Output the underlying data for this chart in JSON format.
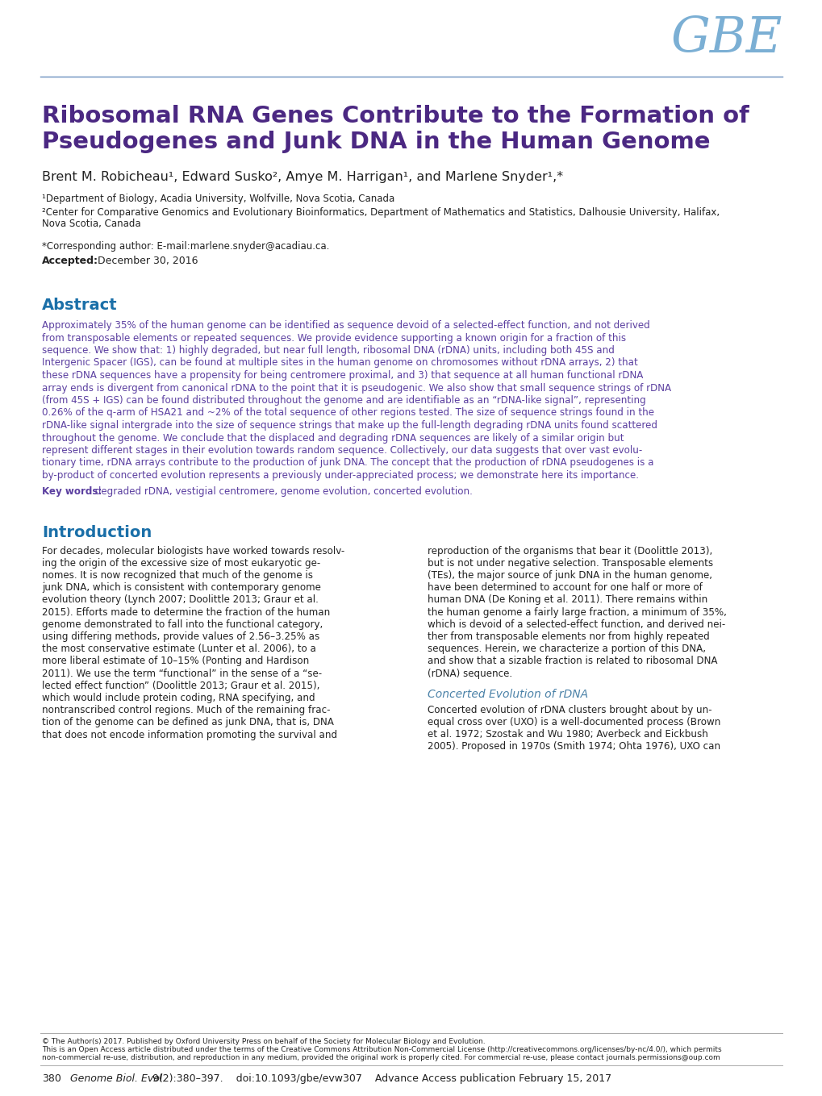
{
  "bg_color": "#ffffff",
  "gbe_color": "#7bafd4",
  "title_color": "#4b2882",
  "title_line1": "Ribosomal RNA Genes Contribute to the Formation of",
  "title_line2": "Pseudogenes and Junk DNA in the Human Genome",
  "authors": "Brent M. Robicheau¹, Edward Susko², Amye M. Harrigan¹, and Marlene Snyder¹,*",
  "affil1": "¹Department of Biology, Acadia University, Wolfville, Nova Scotia, Canada",
  "affil2_line1": "²Center for Comparative Genomics and Evolutionary Bioinformatics, Department of Mathematics and Statistics, Dalhousie University, Halifax,",
  "affil2_line2": "Nova Scotia, Canada",
  "corresponding": "*Corresponding author: E-mail:marlene.snyder@acadiau.ca.",
  "accepted_bold": "Accepted:",
  "accepted_rest": " December 30, 2016",
  "abstract_header": "Abstract",
  "abstract_header_color": "#1a6fa8",
  "abstract_text_color": "#5b3fa0",
  "abstract_lines": [
    "Approximately 35% of the human genome can be identified as sequence devoid of a selected-effect function, and not derived",
    "from transposable elements or repeated sequences. We provide evidence supporting a known origin for a fraction of this",
    "sequence. We show that: 1) highly degraded, but near full length, ribosomal DNA (rDNA) units, including both 45S and",
    "Intergenic Spacer (IGS), can be found at multiple sites in the human genome on chromosomes without rDNA arrays, 2) that",
    "these rDNA sequences have a propensity for being centromere proximal, and 3) that sequence at all human functional rDNA",
    "array ends is divergent from canonical rDNA to the point that it is pseudogenic. We also show that small sequence strings of rDNA",
    "(from 45S + IGS) can be found distributed throughout the genome and are identifiable as an “rDNA-like signal”, representing",
    "0.26% of the q-arm of HSA21 and ~2% of the total sequence of other regions tested. The size of sequence strings found in the",
    "rDNA-like signal intergrade into the size of sequence strings that make up the full-length degrading rDNA units found scattered",
    "throughout the genome. We conclude that the displaced and degrading rDNA sequences are likely of a similar origin but",
    "represent different stages in their evolution towards random sequence. Collectively, our data suggests that over vast evolu-",
    "tionary time, rDNA arrays contribute to the production of junk DNA. The concept that the production of rDNA pseudogenes is a",
    "by-product of concerted evolution represents a previously under-appreciated process; we demonstrate here its importance."
  ],
  "keywords_bold": "Key words:",
  "keywords_rest": " degraded rDNA, vestigial centromere, genome evolution, concerted evolution.",
  "keywords_color": "#5b3fa0",
  "intro_header": "Introduction",
  "intro_header_color": "#1a6fa8",
  "intro_left_lines": [
    "For decades, molecular biologists have worked towards resolv-",
    "ing the origin of the excessive size of most eukaryotic ge-",
    "nomes. It is now recognized that much of the genome is",
    "junk DNA, which is consistent with contemporary genome",
    "evolution theory (Lynch 2007; Doolittle 2013; Graur et al.",
    "2015). Efforts made to determine the fraction of the human",
    "genome demonstrated to fall into the functional category,",
    "using differing methods, provide values of 2.56–3.25% as",
    "the most conservative estimate (Lunter et al. 2006), to a",
    "more liberal estimate of 10–15% (Ponting and Hardison",
    "2011). We use the term “functional” in the sense of a “se-",
    "lected effect function” (Doolittle 2013; Graur et al. 2015),",
    "which would include protein coding, RNA specifying, and",
    "nontranscribed control regions. Much of the remaining frac-",
    "tion of the genome can be defined as junk DNA, that is, DNA",
    "that does not encode information promoting the survival and"
  ],
  "intro_right_lines": [
    "reproduction of the organisms that bear it (Doolittle 2013),",
    "but is not under negative selection. Transposable elements",
    "(TEs), the major source of junk DNA in the human genome,",
    "have been determined to account for one half or more of",
    "human DNA (De Koning et al. 2011). There remains within",
    "the human genome a fairly large fraction, a minimum of 35%,",
    "which is devoid of a selected-effect function, and derived nei-",
    "ther from transposable elements nor from highly repeated",
    "sequences. Herein, we characterize a portion of this DNA,",
    "and show that a sizable fraction is related to ribosomal DNA",
    "(rDNA) sequence."
  ],
  "concerted_header": "Concerted Evolution of rDNA",
  "concerted_header_color": "#4b82a8",
  "concerted_lines": [
    "Concerted evolution of rDNA clusters brought about by un-",
    "equal cross over (UXO) is a well-documented process (Brown",
    "et al. 1972; Szostak and Wu 1980; Averbeck and Eickbush",
    "2005). Proposed in 1970s (Smith 1974; Ohta 1976), UXO can"
  ],
  "footer_copy": "© The Author(s) 2017. Published by Oxford University Press on behalf of the Society for Molecular Biology and Evolution.",
  "footer_line2": "This is an Open Access article distributed under the terms of the Creative Commons Attribution Non-Commercial License (http://creativecommons.org/licenses/by-nc/4.0/), which permits",
  "footer_line3": "non-commercial re-use, distribution, and reproduction in any medium, provided the original work is properly cited. For commercial re-use, please contact journals.permissions@oup.com",
  "page_num": "380",
  "page_footer_italic": "Genome Biol. Evol.",
  "page_footer_rest": " 9(2):380–397.    doi:10.1093/gbe/evw307    Advance Access publication February 15, 2017",
  "body_text_color": "#222222",
  "line_color": "#6a8fbf",
  "footer_line_color": "#aaaaaa"
}
